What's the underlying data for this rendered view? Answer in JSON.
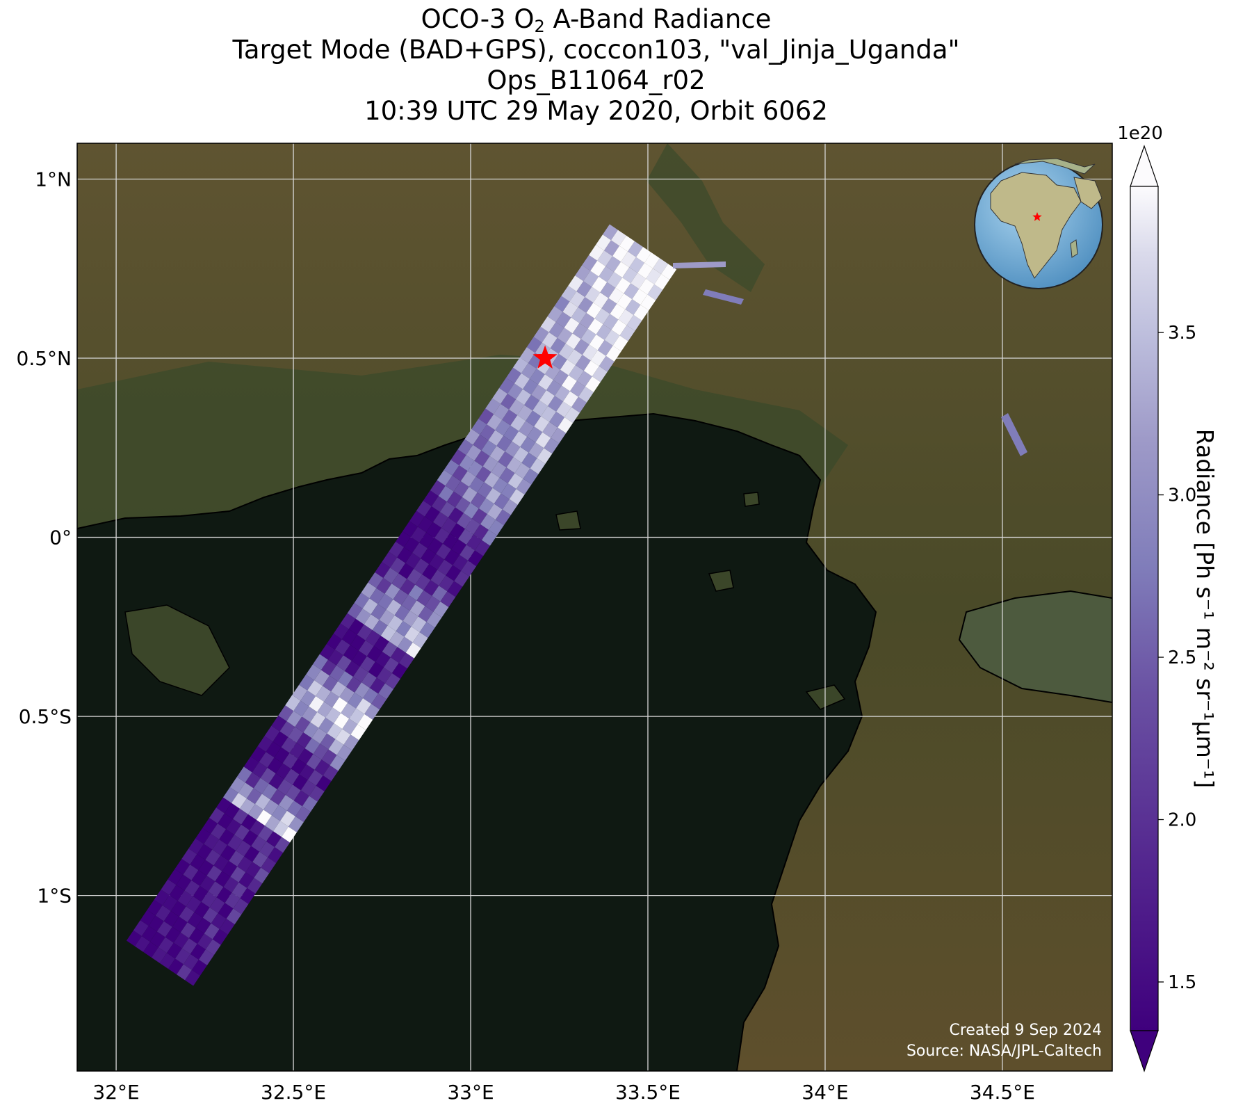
{
  "title": {
    "line1_pre": "OCO-3 O",
    "line1_sub": "2",
    "line1_post": " A-Band Radiance",
    "line2": "Target Mode (BAD+GPS), coccon103, \"val_Jinja_Uganda\"",
    "line3": "Ops_B11064_r02",
    "line4": "10:39 UTC 29 May 2020, Orbit 6062"
  },
  "map": {
    "lon_range": [
      31.89,
      34.81
    ],
    "lat_range": [
      -1.49,
      1.1
    ],
    "lon_ticks": [
      {
        "value": 32.0,
        "label": "32°E"
      },
      {
        "value": 32.5,
        "label": "32.5°E"
      },
      {
        "value": 33.0,
        "label": "33°E"
      },
      {
        "value": 33.5,
        "label": "33.5°E"
      },
      {
        "value": 34.0,
        "label": "34°E"
      },
      {
        "value": 34.5,
        "label": "34.5°E"
      }
    ],
    "lat_ticks": [
      {
        "value": 1.0,
        "label": "1°N"
      },
      {
        "value": 0.5,
        "label": "0.5°N"
      },
      {
        "value": 0.0,
        "label": "0°"
      },
      {
        "value": -0.5,
        "label": "0.5°S"
      },
      {
        "value": -1.0,
        "label": "1°S"
      }
    ],
    "target": {
      "lon": 33.21,
      "lat": 0.5,
      "color": "#ff0000"
    },
    "swath_color_low": "#3f007d",
    "swath_color_high": "#fcfbfd",
    "lake_color": "#0f1912",
    "land_color": "#5a5230"
  },
  "colorbar": {
    "multiplier": "1e20",
    "label": "Radiance [Ph s⁻¹ m⁻² sr⁻¹μm⁻¹]",
    "min": 1.35,
    "max": 3.95,
    "ticks": [
      {
        "value": 1.5,
        "label": "1.5"
      },
      {
        "value": 2.0,
        "label": "2.0"
      },
      {
        "value": 2.5,
        "label": "2.5"
      },
      {
        "value": 3.0,
        "label": "3.0"
      },
      {
        "value": 3.5,
        "label": "3.5"
      }
    ],
    "extend": "both"
  },
  "credits": {
    "created": "Created 9 Sep 2024",
    "source": "Source: NASA/JPL-Caltech"
  },
  "inset": {
    "description_icon": "globe-icon",
    "marker_color": "#ff0000"
  }
}
